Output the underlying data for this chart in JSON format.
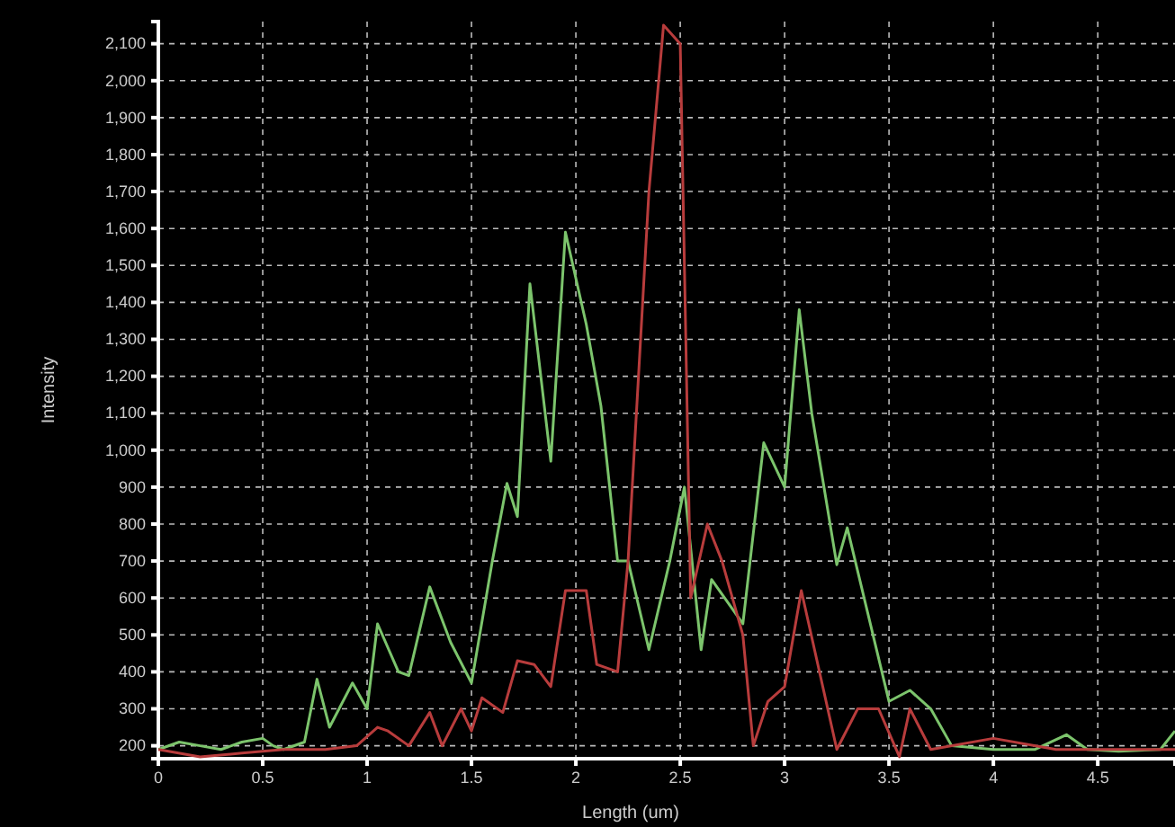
{
  "chart_data": {
    "type": "line",
    "xlabel": "Length (um)",
    "ylabel": "Intensity",
    "grid": true,
    "line_style": "solid",
    "marker": "none",
    "xlim": [
      0,
      4.87
    ],
    "ylim": [
      165,
      2160
    ],
    "xticks": [
      0,
      0.5,
      1,
      1.5,
      2,
      2.5,
      3,
      3.5,
      4,
      4.5
    ],
    "yticks": [
      200,
      300,
      400,
      500,
      600,
      700,
      800,
      900,
      {
        "value": 1000,
        "label": "1,000"
      },
      {
        "value": 1100,
        "label": "1,100"
      },
      {
        "value": 1200,
        "label": "1,200"
      },
      {
        "value": 1300,
        "label": "1,300"
      },
      {
        "value": 1400,
        "label": "1,400"
      },
      {
        "value": 1500,
        "label": "1,500"
      },
      {
        "value": 1600,
        "label": "1,600"
      },
      {
        "value": 1700,
        "label": "1,700"
      },
      {
        "value": 1800,
        "label": "1,800"
      },
      {
        "value": 1900,
        "label": "1,900"
      },
      {
        "value": 2000,
        "label": "2,000"
      },
      {
        "value": 2100,
        "label": "2,100"
      }
    ],
    "series": [
      {
        "color": "#7cc46c",
        "x": [
          0,
          0.1,
          0.2,
          0.3,
          0.4,
          0.5,
          0.55,
          0.6,
          0.7,
          0.76,
          0.82,
          0.93,
          1.0,
          1.05,
          1.15,
          1.2,
          1.3,
          1.4,
          1.5,
          1.6,
          1.67,
          1.72,
          1.78,
          1.88,
          1.95,
          2.05,
          2.12,
          2.2,
          2.25,
          2.35,
          2.45,
          2.52,
          2.6,
          2.65,
          2.8,
          2.9,
          3.0,
          3.07,
          3.13,
          3.25,
          3.3,
          3.5,
          3.6,
          3.7,
          3.8,
          4.0,
          4.2,
          4.35,
          4.45,
          4.6,
          4.8,
          4.87
        ],
        "values": [
          190,
          210,
          200,
          190,
          210,
          220,
          200,
          190,
          210,
          380,
          250,
          370,
          300,
          530,
          400,
          390,
          630,
          480,
          370,
          700,
          910,
          820,
          1450,
          970,
          1590,
          1340,
          1120,
          700,
          700,
          460,
          700,
          900,
          460,
          650,
          530,
          1020,
          900,
          1380,
          1100,
          690,
          790,
          320,
          350,
          300,
          200,
          190,
          190,
          230,
          190,
          185,
          190,
          240
        ]
      },
      {
        "color": "#b83c3c",
        "x": [
          0,
          0.2,
          0.4,
          0.6,
          0.8,
          0.95,
          1.05,
          1.1,
          1.2,
          1.3,
          1.36,
          1.45,
          1.5,
          1.55,
          1.65,
          1.72,
          1.8,
          1.88,
          1.95,
          2.05,
          2.1,
          2.2,
          2.25,
          2.35,
          2.42,
          2.5,
          2.55,
          2.63,
          2.7,
          2.8,
          2.85,
          2.92,
          3.0,
          3.08,
          3.25,
          3.35,
          3.45,
          3.55,
          3.6,
          3.7,
          4.0,
          4.3,
          4.87
        ],
        "values": [
          190,
          170,
          180,
          190,
          190,
          200,
          250,
          240,
          200,
          290,
          200,
          300,
          240,
          330,
          290,
          430,
          420,
          360,
          620,
          620,
          420,
          400,
          700,
          1700,
          2150,
          2100,
          600,
          800,
          700,
          500,
          200,
          320,
          360,
          620,
          190,
          300,
          300,
          170,
          300,
          190,
          220,
          190,
          190
        ]
      }
    ]
  }
}
